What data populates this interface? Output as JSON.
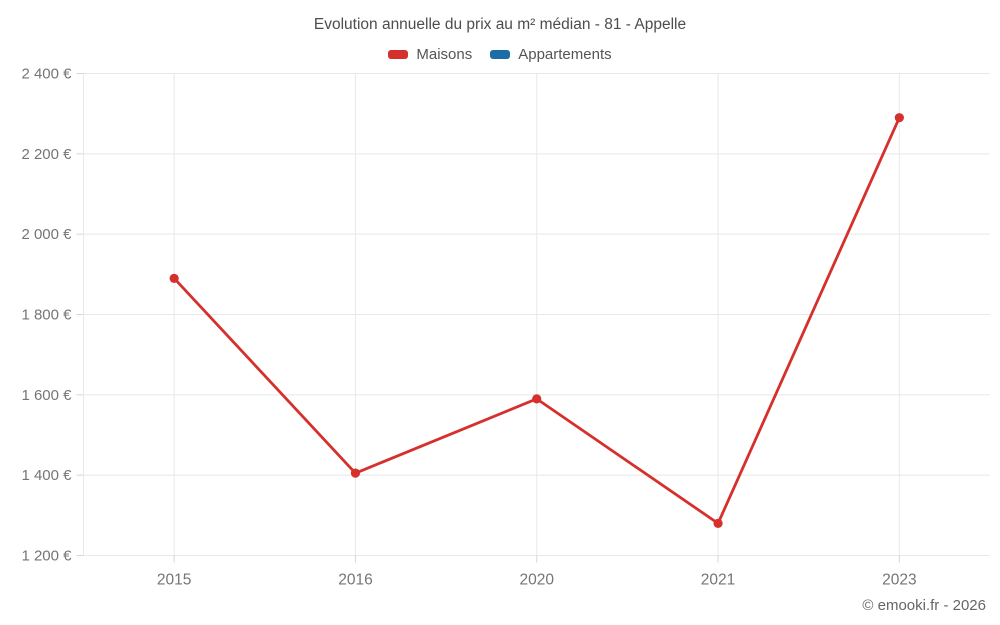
{
  "chart_data": {
    "type": "line",
    "title": "Evolution annuelle du prix au m² médian - 81 - Appelle",
    "categories": [
      "2015",
      "2016",
      "2020",
      "2021",
      "2023"
    ],
    "series": [
      {
        "name": "Maisons",
        "color": "#d6302c",
        "values": [
          1890,
          1405,
          1590,
          1280,
          2290
        ]
      },
      {
        "name": "Appartements",
        "color": "#1b6ea5",
        "values": []
      }
    ],
    "ylim": [
      1200,
      2400
    ],
    "ytick_step": 200,
    "ytick_labels": [
      "1 200 €",
      "1 400 €",
      "1 600 €",
      "1 800 €",
      "2 000 €",
      "2 200 €",
      "2 400 €"
    ],
    "xlabel": "",
    "ylabel": "",
    "grid": true,
    "legend_position": "top",
    "colors": {
      "grid": "#e8e8e8",
      "axis": "#d6d6d6",
      "tick_label": "#757575"
    }
  },
  "footer": {
    "credit": "© emooki.fr - 2026"
  }
}
